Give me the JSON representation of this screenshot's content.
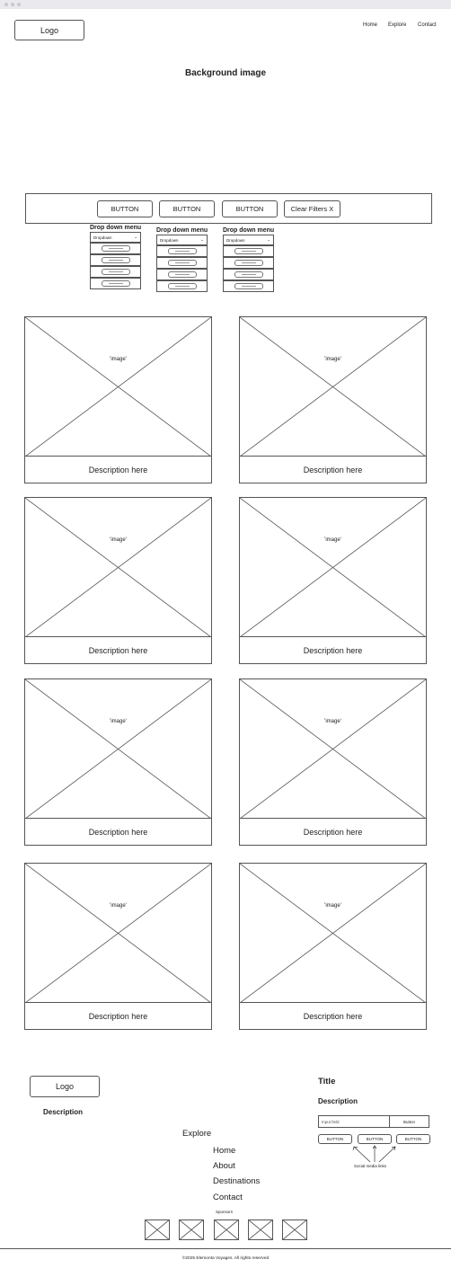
{
  "header": {
    "logo_label": "Logo",
    "nav": [
      "Home",
      "Explore",
      "Contact"
    ]
  },
  "hero": {
    "title": "Background image"
  },
  "filters": {
    "buttons": [
      "BUTTON",
      "BUTTON",
      "BUTTON"
    ],
    "clear_label": "Clear Filters X",
    "dropdowns": [
      {
        "title": "Drop down menu",
        "select": "Dropdown",
        "rows": 4
      },
      {
        "title": "Drop down menu",
        "select": "Dropdown",
        "rows": 4
      },
      {
        "title": "Drop down menu",
        "select": "Dropdown",
        "rows": 4
      }
    ]
  },
  "cards": [
    {
      "image_label": "'image'",
      "description": "Description here"
    },
    {
      "image_label": "'image'",
      "description": "Description here"
    },
    {
      "image_label": "'image'",
      "description": "Description here"
    },
    {
      "image_label": "'image'",
      "description": "Description here"
    },
    {
      "image_label": "'image'",
      "description": "Description here"
    },
    {
      "image_label": "'image'",
      "description": "Description here"
    },
    {
      "image_label": "'image'",
      "description": "Description here"
    },
    {
      "image_label": "'image'",
      "description": "Description here"
    }
  ],
  "footer": {
    "logo_label": "Logo",
    "description": "Description",
    "nav_heading": "Explore",
    "nav_links": [
      "Home",
      "About",
      "Destinations",
      "Contact"
    ],
    "sponsors_label": "Sponsors",
    "newsletter": {
      "title": "Title",
      "description": "Description",
      "input_placeholder": "Input field",
      "button_label": "Button",
      "social_buttons": [
        "BUTTON",
        "BUTTON",
        "BUTTON"
      ],
      "social_caption": "Social media links"
    },
    "copyright": "©2025 Elemonta Voyages. All rights reserved"
  }
}
